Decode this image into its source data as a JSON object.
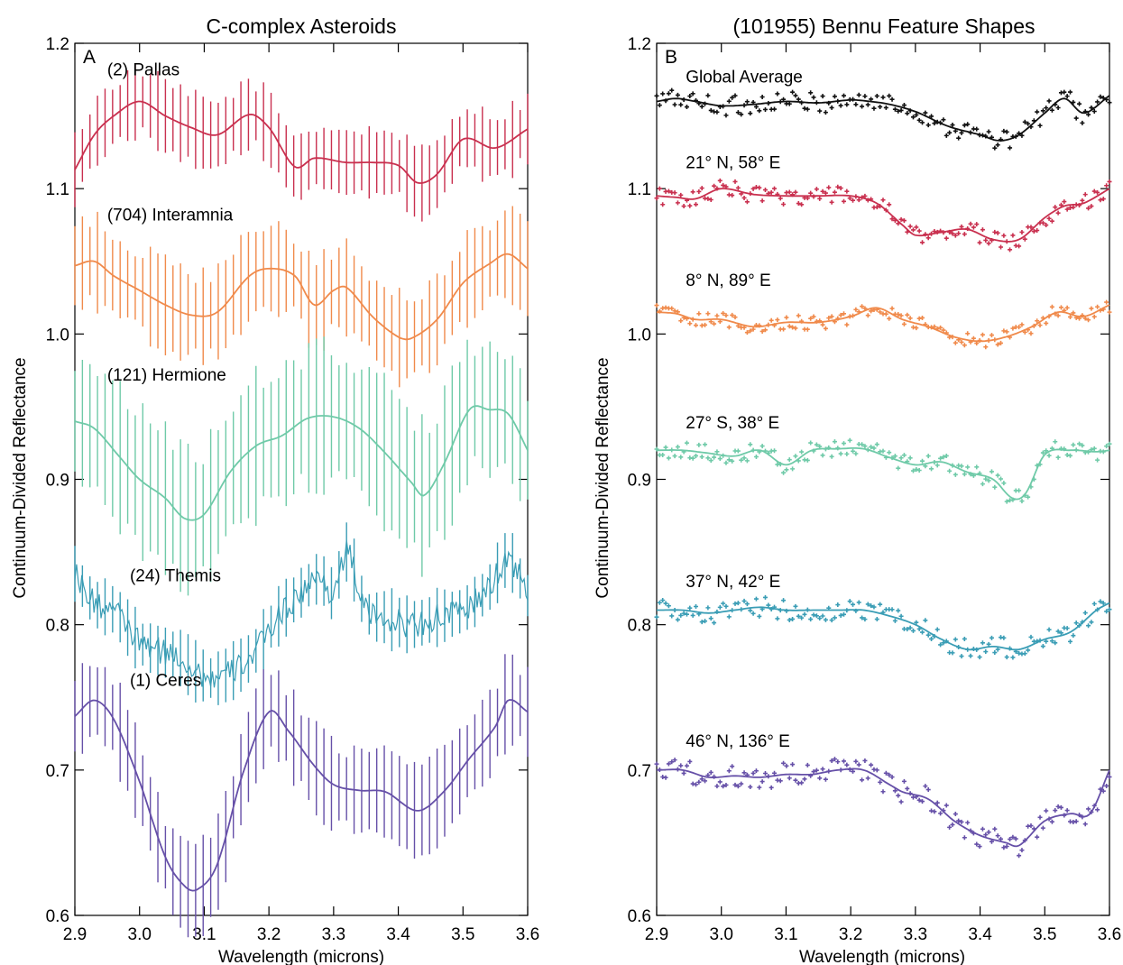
{
  "chart_data": [
    {
      "type": "line",
      "panel_label": "A",
      "title": "C-complex Asteroids",
      "xlabel": "Wavelength (microns)",
      "ylabel": "Continuum-Divided Reflectance",
      "xlim": [
        2.9,
        3.6
      ],
      "ylim": [
        0.6,
        1.2
      ],
      "xticks": [
        "2.9",
        "3.0",
        "3.1",
        "3.2",
        "3.3",
        "3.4",
        "3.5",
        "3.6"
      ],
      "yticks": [
        "0.6",
        "0.7",
        "0.8",
        "0.9",
        "1.0",
        "1.1",
        "1.2"
      ],
      "error_bars": true,
      "series": [
        {
          "name": "(2) Pallas",
          "color": "#c9304f",
          "error": 0.022,
          "label_at": [
            2.95,
            1.178
          ],
          "x": [
            2.9,
            2.93,
            2.96,
            3.0,
            3.04,
            3.08,
            3.12,
            3.17,
            3.2,
            3.24,
            3.27,
            3.32,
            3.36,
            3.4,
            3.43,
            3.46,
            3.5,
            3.55,
            3.6
          ],
          "y": [
            1.113,
            1.137,
            1.15,
            1.16,
            1.15,
            1.142,
            1.137,
            1.151,
            1.142,
            1.115,
            1.121,
            1.118,
            1.118,
            1.116,
            1.104,
            1.11,
            1.134,
            1.128,
            1.141
          ]
        },
        {
          "name": "(704) Interamnia",
          "color": "#f08a4b",
          "error": 0.028,
          "label_at": [
            2.95,
            1.078
          ],
          "x": [
            2.9,
            2.93,
            2.96,
            3.0,
            3.04,
            3.08,
            3.12,
            3.17,
            3.2,
            3.24,
            3.27,
            3.3,
            3.32,
            3.36,
            3.4,
            3.42,
            3.46,
            3.5,
            3.54,
            3.57,
            3.6
          ],
          "y": [
            1.047,
            1.05,
            1.04,
            1.03,
            1.02,
            1.013,
            1.015,
            1.04,
            1.045,
            1.04,
            1.02,
            1.03,
            1.032,
            1.012,
            0.998,
            0.997,
            1.01,
            1.035,
            1.048,
            1.055,
            1.045
          ]
        },
        {
          "name": "(121) Hermione",
          "color": "#6fcaa8",
          "error": 0.045,
          "label_at": [
            2.95,
            0.968
          ],
          "x": [
            2.9,
            2.93,
            2.97,
            3.0,
            3.04,
            3.07,
            3.1,
            3.14,
            3.18,
            3.22,
            3.26,
            3.3,
            3.34,
            3.38,
            3.42,
            3.44,
            3.47,
            3.51,
            3.54,
            3.57,
            3.6
          ],
          "y": [
            0.94,
            0.935,
            0.915,
            0.9,
            0.887,
            0.873,
            0.876,
            0.905,
            0.923,
            0.93,
            0.942,
            0.943,
            0.935,
            0.918,
            0.898,
            0.889,
            0.91,
            0.948,
            0.948,
            0.945,
            0.92
          ]
        },
        {
          "name": "(24) Themis",
          "color": "#3a9db5",
          "error": 0.018,
          "label_at": [
            2.985,
            0.83
          ],
          "x": [
            2.9,
            2.93,
            2.96,
            3.0,
            3.03,
            3.06,
            3.09,
            3.12,
            3.15,
            3.18,
            3.21,
            3.25,
            3.28,
            3.3,
            3.32,
            3.35,
            3.38,
            3.42,
            3.46,
            3.5,
            3.54,
            3.57,
            3.6
          ],
          "y": [
            0.835,
            0.815,
            0.81,
            0.788,
            0.782,
            0.778,
            0.767,
            0.763,
            0.77,
            0.782,
            0.803,
            0.822,
            0.832,
            0.822,
            0.85,
            0.81,
            0.805,
            0.8,
            0.805,
            0.81,
            0.825,
            0.845,
            0.82
          ]
        },
        {
          "name": "(1) Ceres",
          "color": "#6650a8",
          "error": 0.028,
          "label_at": [
            2.985,
            0.758
          ],
          "x": [
            2.9,
            2.93,
            2.96,
            3.0,
            3.04,
            3.07,
            3.09,
            3.12,
            3.16,
            3.2,
            3.23,
            3.27,
            3.3,
            3.34,
            3.38,
            3.43,
            3.47,
            3.51,
            3.55,
            3.57,
            3.6
          ],
          "y": [
            0.737,
            0.748,
            0.735,
            0.692,
            0.64,
            0.62,
            0.618,
            0.635,
            0.698,
            0.74,
            0.727,
            0.703,
            0.69,
            0.686,
            0.685,
            0.672,
            0.685,
            0.708,
            0.73,
            0.748,
            0.74
          ]
        }
      ]
    },
    {
      "type": "scatter",
      "panel_label": "B",
      "title": "(101955) Bennu Feature Shapes",
      "xlabel": "Wavelength (microns)",
      "ylabel": "Continuum-Divided Reflectance",
      "xlim": [
        2.9,
        3.6
      ],
      "ylim": [
        0.6,
        1.2
      ],
      "xticks": [
        "2.9",
        "3.0",
        "3.1",
        "3.2",
        "3.3",
        "3.4",
        "3.5",
        "3.6"
      ],
      "yticks": [
        "0.6",
        "0.7",
        "0.8",
        "0.9",
        "1.0",
        "1.1",
        "1.2"
      ],
      "fit_lines": true,
      "series": [
        {
          "name": "Global Average",
          "color": "#111111",
          "scatter": 0.007,
          "label_at": [
            2.945,
            1.173
          ],
          "x": [
            2.9,
            2.93,
            2.96,
            3.0,
            3.05,
            3.1,
            3.15,
            3.2,
            3.23,
            3.26,
            3.3,
            3.35,
            3.4,
            3.43,
            3.46,
            3.5,
            3.53,
            3.56,
            3.6
          ],
          "y": [
            1.16,
            1.162,
            1.16,
            1.157,
            1.158,
            1.16,
            1.159,
            1.161,
            1.16,
            1.158,
            1.153,
            1.143,
            1.137,
            1.133,
            1.137,
            1.152,
            1.162,
            1.152,
            1.164
          ]
        },
        {
          "name": "21° N, 58° E",
          "color": "#c9304f",
          "scatter": 0.006,
          "label_at": [
            2.945,
            1.114
          ],
          "x": [
            2.9,
            2.93,
            2.96,
            3.0,
            3.05,
            3.1,
            3.15,
            3.2,
            3.24,
            3.28,
            3.3,
            3.34,
            3.38,
            3.42,
            3.46,
            3.5,
            3.53,
            3.56,
            3.6
          ],
          "y": [
            1.095,
            1.094,
            1.093,
            1.1,
            1.096,
            1.095,
            1.095,
            1.095,
            1.09,
            1.075,
            1.068,
            1.07,
            1.072,
            1.065,
            1.065,
            1.08,
            1.088,
            1.09,
            1.1
          ]
        },
        {
          "name": "8° N, 89° E",
          "color": "#f08a4b",
          "scatter": 0.005,
          "label_at": [
            2.945,
            1.033
          ],
          "x": [
            2.9,
            2.93,
            2.96,
            3.0,
            3.05,
            3.1,
            3.15,
            3.2,
            3.24,
            3.28,
            3.32,
            3.36,
            3.4,
            3.44,
            3.48,
            3.52,
            3.56,
            3.6
          ],
          "y": [
            1.015,
            1.014,
            1.01,
            1.01,
            1.005,
            1.008,
            1.008,
            1.012,
            1.018,
            1.01,
            1.005,
            0.998,
            0.995,
            0.998,
            1.005,
            1.015,
            1.012,
            1.02
          ]
        },
        {
          "name": "27° S, 38° E",
          "color": "#6fcaa8",
          "scatter": 0.006,
          "label_at": [
            2.945,
            0.935
          ],
          "x": [
            2.9,
            2.94,
            2.98,
            3.02,
            3.06,
            3.1,
            3.14,
            3.18,
            3.22,
            3.26,
            3.3,
            3.34,
            3.38,
            3.42,
            3.45,
            3.47,
            3.5,
            3.54,
            3.58,
            3.6
          ],
          "y": [
            0.92,
            0.92,
            0.918,
            0.916,
            0.92,
            0.91,
            0.92,
            0.921,
            0.921,
            0.915,
            0.91,
            0.912,
            0.905,
            0.9,
            0.887,
            0.89,
            0.917,
            0.92,
            0.919,
            0.92
          ]
        },
        {
          "name": "37° N, 42° E",
          "color": "#3a9db5",
          "scatter": 0.007,
          "label_at": [
            2.945,
            0.826
          ],
          "x": [
            2.9,
            2.94,
            2.98,
            3.02,
            3.06,
            3.1,
            3.14,
            3.18,
            3.22,
            3.26,
            3.3,
            3.34,
            3.38,
            3.42,
            3.46,
            3.5,
            3.54,
            3.58,
            3.6
          ],
          "y": [
            0.81,
            0.81,
            0.808,
            0.81,
            0.812,
            0.81,
            0.81,
            0.81,
            0.81,
            0.806,
            0.8,
            0.79,
            0.783,
            0.785,
            0.783,
            0.79,
            0.795,
            0.81,
            0.815
          ]
        },
        {
          "name": "46° N, 136° E",
          "color": "#6650a8",
          "scatter": 0.008,
          "label_at": [
            2.945,
            0.716
          ],
          "x": [
            2.9,
            2.94,
            2.98,
            3.02,
            3.06,
            3.1,
            3.14,
            3.18,
            3.22,
            3.26,
            3.28,
            3.32,
            3.36,
            3.4,
            3.44,
            3.46,
            3.5,
            3.54,
            3.57,
            3.6
          ],
          "y": [
            0.7,
            0.7,
            0.695,
            0.696,
            0.695,
            0.697,
            0.697,
            0.7,
            0.7,
            0.69,
            0.685,
            0.68,
            0.665,
            0.655,
            0.65,
            0.648,
            0.665,
            0.67,
            0.67,
            0.7
          ]
        }
      ]
    }
  ]
}
